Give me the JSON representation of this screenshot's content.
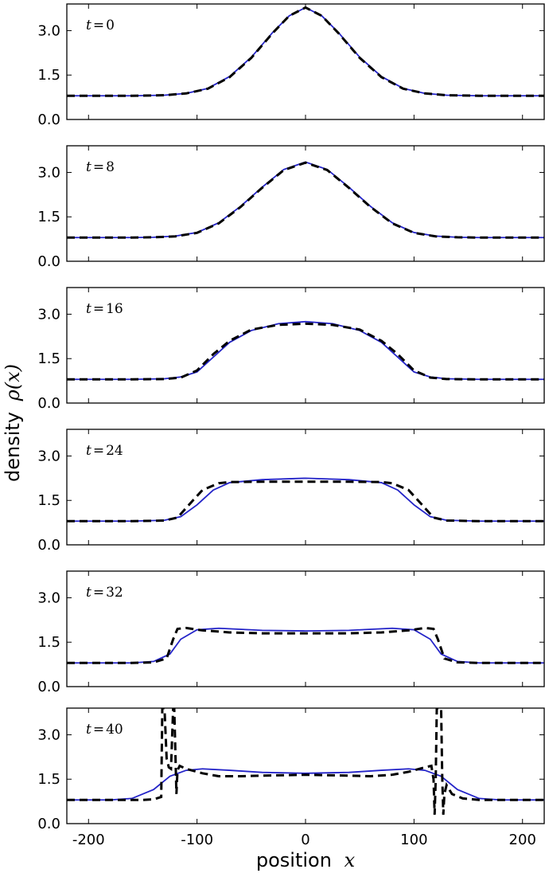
{
  "chart_data": {
    "type": "line",
    "layout": "6 stacked panels sharing x axis",
    "xlabel": "position",
    "xlabel_math": "x",
    "ylabel": "density",
    "ylabel_math": "ρ(x)",
    "xlim": [
      -220,
      220
    ],
    "ylim": [
      0,
      3.9
    ],
    "xticks": [
      -200,
      -100,
      0,
      100,
      200
    ],
    "yticks": [
      0.0,
      1.5,
      3.0
    ],
    "ytick_labels": [
      "0.0",
      "1.5",
      "3.0"
    ],
    "grid": false,
    "series_styles": [
      {
        "style": "solid",
        "color": "#2323c8"
      },
      {
        "style": "dashed",
        "color": "#000000"
      }
    ],
    "panels": [
      {
        "label": "t = 0",
        "label_var": "t",
        "label_value": "0",
        "solid": {
          "x": [
            -220,
            -160,
            -130,
            -110,
            -90,
            -70,
            -50,
            -30,
            -15,
            0,
            15,
            30,
            50,
            70,
            90,
            110,
            130,
            160,
            220
          ],
          "y": [
            0.8,
            0.8,
            0.82,
            0.88,
            1.05,
            1.45,
            2.1,
            2.95,
            3.5,
            3.78,
            3.5,
            2.95,
            2.1,
            1.45,
            1.05,
            0.88,
            0.82,
            0.8,
            0.8
          ]
        },
        "dashed": {
          "x": [
            -220,
            -160,
            -130,
            -110,
            -90,
            -70,
            -50,
            -30,
            -15,
            0,
            15,
            30,
            50,
            70,
            90,
            110,
            130,
            160,
            220
          ],
          "y": [
            0.8,
            0.8,
            0.82,
            0.88,
            1.04,
            1.43,
            2.08,
            2.93,
            3.5,
            3.78,
            3.5,
            2.93,
            2.08,
            1.43,
            1.04,
            0.88,
            0.82,
            0.8,
            0.8
          ]
        }
      },
      {
        "label": "t = 8",
        "label_var": "t",
        "label_value": "8",
        "solid": {
          "x": [
            -220,
            -160,
            -140,
            -120,
            -100,
            -80,
            -60,
            -40,
            -20,
            0,
            20,
            40,
            60,
            80,
            100,
            120,
            140,
            160,
            220
          ],
          "y": [
            0.8,
            0.8,
            0.81,
            0.85,
            0.97,
            1.3,
            1.85,
            2.5,
            3.1,
            3.35,
            3.1,
            2.5,
            1.85,
            1.3,
            0.97,
            0.85,
            0.81,
            0.8,
            0.8
          ]
        },
        "dashed": {
          "x": [
            -220,
            -160,
            -140,
            -120,
            -100,
            -80,
            -60,
            -40,
            -20,
            0,
            20,
            40,
            60,
            80,
            100,
            120,
            140,
            160,
            220
          ],
          "y": [
            0.8,
            0.8,
            0.81,
            0.84,
            0.96,
            1.28,
            1.83,
            2.48,
            3.08,
            3.33,
            3.08,
            2.48,
            1.83,
            1.28,
            0.96,
            0.84,
            0.81,
            0.8,
            0.8
          ]
        }
      },
      {
        "label": "t = 16",
        "label_var": "t",
        "label_value": "16",
        "solid": {
          "x": [
            -220,
            -160,
            -130,
            -115,
            -100,
            -85,
            -70,
            -50,
            -25,
            0,
            25,
            50,
            70,
            85,
            100,
            115,
            130,
            160,
            220
          ],
          "y": [
            0.8,
            0.8,
            0.82,
            0.88,
            1.05,
            1.55,
            2.05,
            2.45,
            2.68,
            2.75,
            2.68,
            2.45,
            2.05,
            1.55,
            1.05,
            0.88,
            0.82,
            0.8,
            0.8
          ]
        },
        "dashed": {
          "x": [
            -220,
            -160,
            -130,
            -115,
            -100,
            -85,
            -70,
            -50,
            -25,
            0,
            25,
            50,
            70,
            85,
            100,
            115,
            130,
            160,
            220
          ],
          "y": [
            0.8,
            0.8,
            0.81,
            0.86,
            1.1,
            1.65,
            2.1,
            2.48,
            2.64,
            2.68,
            2.64,
            2.48,
            2.1,
            1.65,
            1.1,
            0.86,
            0.81,
            0.8,
            0.8
          ]
        }
      },
      {
        "label": "t = 24",
        "label_var": "t",
        "label_value": "24",
        "solid": {
          "x": [
            -220,
            -160,
            -130,
            -115,
            -100,
            -85,
            -70,
            -40,
            0,
            40,
            70,
            85,
            100,
            115,
            130,
            160,
            220
          ],
          "y": [
            0.8,
            0.8,
            0.83,
            0.95,
            1.35,
            1.85,
            2.1,
            2.2,
            2.25,
            2.2,
            2.1,
            1.85,
            1.35,
            0.95,
            0.83,
            0.8,
            0.8
          ]
        },
        "dashed": {
          "x": [
            -220,
            -160,
            -130,
            -118,
            -105,
            -95,
            -80,
            -70,
            -40,
            0,
            40,
            70,
            80,
            95,
            105,
            118,
            130,
            160,
            220
          ],
          "y": [
            0.8,
            0.8,
            0.82,
            0.92,
            1.45,
            1.85,
            2.08,
            2.12,
            2.13,
            2.13,
            2.13,
            2.12,
            2.08,
            1.85,
            1.45,
            0.92,
            0.82,
            0.8,
            0.8
          ]
        }
      },
      {
        "label": "t = 32",
        "label_var": "t",
        "label_value": "32",
        "solid": {
          "x": [
            -220,
            -160,
            -140,
            -125,
            -115,
            -100,
            -80,
            -40,
            0,
            40,
            80,
            100,
            115,
            125,
            140,
            160,
            220
          ],
          "y": [
            0.8,
            0.8,
            0.85,
            1.1,
            1.6,
            1.92,
            1.97,
            1.9,
            1.88,
            1.9,
            1.97,
            1.92,
            1.6,
            1.1,
            0.85,
            0.8,
            0.8
          ]
        },
        "dashed": {
          "x": [
            -220,
            -160,
            -140,
            -128,
            -122,
            -118,
            -110,
            -95,
            -70,
            -40,
            0,
            40,
            70,
            95,
            110,
            118,
            122,
            128,
            140,
            160,
            220
          ],
          "y": [
            0.8,
            0.8,
            0.82,
            0.95,
            1.6,
            1.95,
            1.98,
            1.9,
            1.83,
            1.8,
            1.8,
            1.8,
            1.83,
            1.9,
            1.98,
            1.95,
            1.6,
            0.95,
            0.82,
            0.8,
            0.8
          ]
        }
      },
      {
        "label": "t = 40",
        "label_var": "t",
        "label_value": "40",
        "solid": {
          "x": [
            -220,
            -180,
            -160,
            -140,
            -125,
            -110,
            -95,
            -70,
            -40,
            0,
            40,
            70,
            95,
            110,
            125,
            140,
            160,
            180,
            220
          ],
          "y": [
            0.8,
            0.8,
            0.85,
            1.15,
            1.6,
            1.8,
            1.85,
            1.8,
            1.73,
            1.7,
            1.73,
            1.8,
            1.85,
            1.8,
            1.6,
            1.15,
            0.85,
            0.8,
            0.8
          ]
        },
        "dashed": {
          "x": [
            -220,
            -150,
            -140,
            -133,
            -132,
            -131,
            -130,
            -128,
            -126,
            -124,
            -122,
            -121,
            -120,
            -119,
            -118,
            -116,
            -110,
            -95,
            -80,
            -60,
            -40,
            0,
            40,
            60,
            80,
            95,
            110,
            116,
            118,
            119,
            120,
            121,
            122,
            123,
            124,
            125,
            126,
            127,
            128,
            130,
            135,
            145,
            160,
            220
          ],
          "y": [
            0.8,
            0.8,
            0.82,
            0.9,
            3.9,
            3.9,
            3.9,
            2.2,
            1.9,
            1.85,
            3.9,
            3.9,
            2.5,
            1.0,
            1.8,
            1.95,
            1.85,
            1.7,
            1.6,
            1.6,
            1.62,
            1.65,
            1.62,
            1.6,
            1.65,
            1.75,
            1.9,
            1.95,
            1.5,
            0.3,
            1.5,
            3.9,
            3.9,
            3.9,
            3.9,
            3.9,
            1.6,
            0.3,
            1.0,
            1.3,
            1.0,
            0.85,
            0.8,
            0.8
          ]
        }
      }
    ]
  }
}
